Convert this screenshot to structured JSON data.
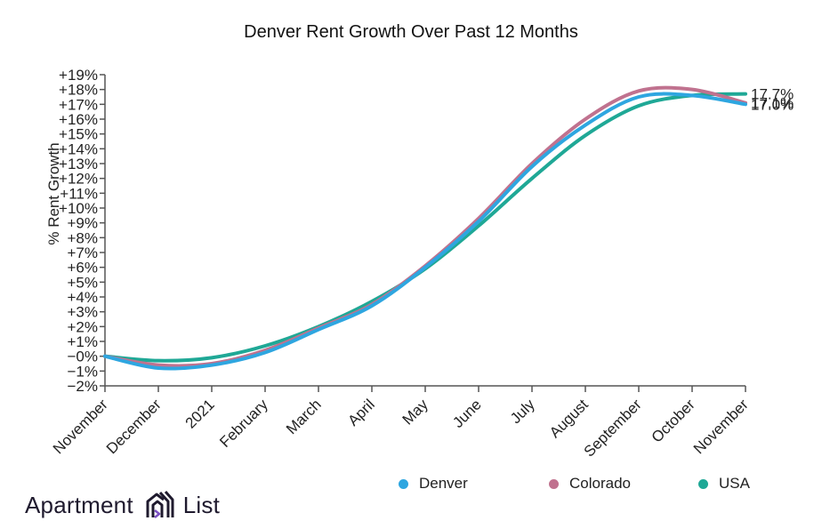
{
  "chart_data": {
    "type": "line",
    "title": "Denver Rent Growth Over Past 12 Months",
    "xlabel": "",
    "ylabel": "% Rent Growth",
    "categories": [
      "November",
      "December",
      "2021",
      "February",
      "March",
      "April",
      "May",
      "June",
      "July",
      "August",
      "September",
      "October",
      "November"
    ],
    "yticks": [
      "+19%",
      "+18%",
      "+17%",
      "+16%",
      "+15%",
      "+14%",
      "+13%",
      "+12%",
      "+11%",
      "+10%",
      "+9%",
      "+8%",
      "+7%",
      "+6%",
      "+5%",
      "+4%",
      "+3%",
      "+2%",
      "+1%",
      "−0%",
      "−1%",
      "−2%"
    ],
    "ylim": [
      -2,
      19
    ],
    "grid": false,
    "legend_position": "bottom-right",
    "series": [
      {
        "name": "Denver",
        "color": "#2ea6e0",
        "values": [
          0,
          -0.8,
          -0.6,
          0.25,
          1.8,
          3.4,
          6.0,
          9.1,
          12.8,
          15.6,
          17.5,
          17.6,
          17.0
        ],
        "end_label": "17.0%"
      },
      {
        "name": "Colorado",
        "color": "#c0728f",
        "values": [
          0,
          -0.6,
          -0.5,
          0.4,
          1.9,
          3.5,
          6.1,
          9.3,
          13.0,
          16.0,
          17.9,
          18.0,
          17.1
        ],
        "end_label": "17.1%"
      },
      {
        "name": "USA",
        "color": "#1fa896",
        "values": [
          0,
          -0.3,
          -0.1,
          0.7,
          2.0,
          3.7,
          5.9,
          8.8,
          12.0,
          14.9,
          16.9,
          17.6,
          17.7
        ],
        "end_label": "17.7%"
      }
    ]
  },
  "legend": [
    {
      "label": "Denver",
      "color": "#2ea6e0"
    },
    {
      "label": "Colorado",
      "color": "#c0728f"
    },
    {
      "label": "USA",
      "color": "#1fa896"
    }
  ],
  "branding": {
    "left_text": "Apartment",
    "right_text": "List"
  }
}
